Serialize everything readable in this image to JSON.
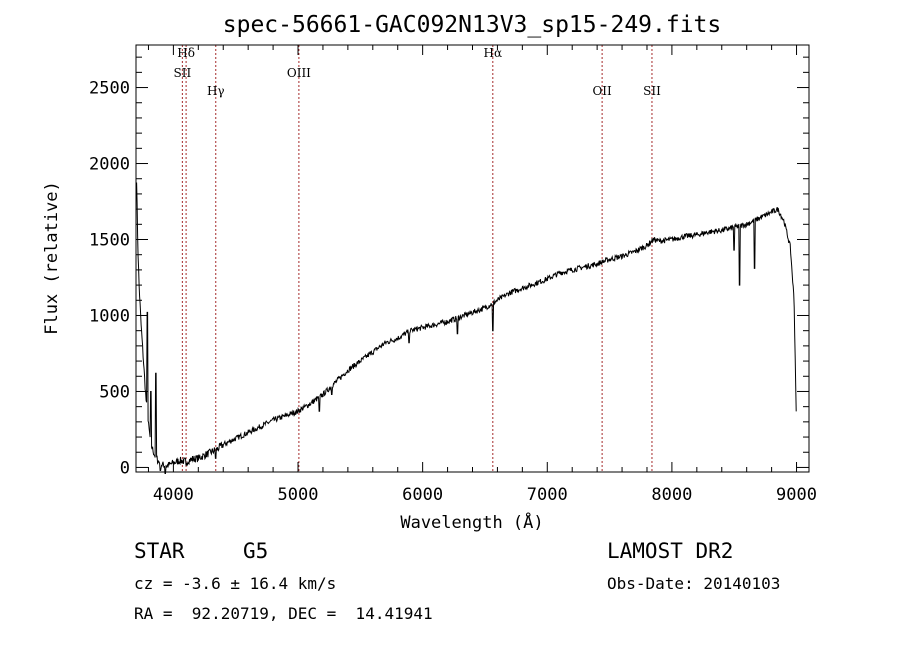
{
  "chart_data": {
    "type": "line",
    "title": "spec-56661-GAC092N13V3_sp15-249.fits",
    "xlabel": "Wavelength (Å)",
    "ylabel": "Flux (relative)",
    "xlim": [
      3700,
      9100
    ],
    "ylim": [
      -30,
      2780
    ],
    "xticks": [
      4000,
      5000,
      6000,
      7000,
      8000,
      9000
    ],
    "yticks": [
      0,
      500,
      1000,
      1500,
      2000,
      2500
    ],
    "grid": false,
    "legend": "none",
    "series": [
      {
        "color": "#000000",
        "x": [
          3705,
          3715,
          3725,
          3740,
          3760,
          3780,
          3800,
          3820,
          3850,
          3880,
          3900,
          3950,
          4000,
          4050,
          4100,
          4150,
          4200,
          4250,
          4300,
          4350,
          4400,
          4500,
          4600,
          4700,
          4800,
          4900,
          5000,
          5100,
          5200,
          5300,
          5400,
          5500,
          5600,
          5700,
          5800,
          5900,
          6000,
          6100,
          6200,
          6300,
          6400,
          6500,
          6600,
          6700,
          6800,
          6900,
          7000,
          7100,
          7200,
          7300,
          7400,
          7500,
          7600,
          7700,
          7800,
          7850,
          7900,
          8000,
          8100,
          8200,
          8300,
          8400,
          8500,
          8600,
          8700,
          8800,
          8850,
          8900,
          8950,
          8980,
          9000
        ],
        "y": [
          1900,
          1450,
          1200,
          950,
          700,
          450,
          280,
          150,
          80,
          40,
          20,
          10,
          30,
          45,
          40,
          55,
          60,
          80,
          100,
          120,
          150,
          190,
          230,
          270,
          310,
          340,
          370,
          420,
          480,
          560,
          640,
          700,
          760,
          820,
          850,
          900,
          920,
          940,
          960,
          990,
          1020,
          1050,
          1100,
          1150,
          1180,
          1210,
          1240,
          1280,
          1300,
          1320,
          1340,
          1370,
          1390,
          1420,
          1460,
          1500,
          1490,
          1500,
          1520,
          1530,
          1550,
          1560,
          1580,
          1600,
          1640,
          1680,
          1700,
          1620,
          1450,
          1100,
          250
        ]
      }
    ],
    "dips": [
      {
        "x": 3895,
        "y": -20
      },
      {
        "x": 3935,
        "y": -40
      },
      {
        "x": 4102,
        "y": 15
      },
      {
        "x": 4340,
        "y": 60
      },
      {
        "x": 5170,
        "y": 370
      },
      {
        "x": 5270,
        "y": 480
      },
      {
        "x": 5890,
        "y": 820
      },
      {
        "x": 6280,
        "y": 880
      },
      {
        "x": 6563,
        "y": 900
      },
      {
        "x": 8498,
        "y": 1430
      },
      {
        "x": 8542,
        "y": 1200
      },
      {
        "x": 8662,
        "y": 1310
      }
    ],
    "spikes": [
      {
        "x": 3790,
        "y": 1020
      },
      {
        "x": 3820,
        "y": 500
      },
      {
        "x": 3860,
        "y": 620
      }
    ],
    "lines": [
      {
        "x": 4102,
        "name": "Hδ",
        "label_y": 2700
      },
      {
        "x": 4072,
        "name": "SII",
        "label_y": 2570
      },
      {
        "x": 4340,
        "name": "Hγ",
        "label_y": 2450
      },
      {
        "x": 5007,
        "name": "OIII",
        "label_y": 2570
      },
      {
        "x": 6563,
        "name": "Hα",
        "label_y": 2700
      },
      {
        "x": 7440,
        "name": "OII",
        "label_y": 2450
      },
      {
        "x": 7840,
        "name": "SII",
        "label_y": 2450
      }
    ]
  },
  "info": {
    "class": "STAR",
    "subclass": "G5",
    "survey": "LAMOST DR2",
    "cz": "cz = -3.6 ± 16.4 km/s",
    "obs_date": "Obs-Date: 20140103",
    "coords": "RA =  92.20719, DEC =  14.41941"
  }
}
